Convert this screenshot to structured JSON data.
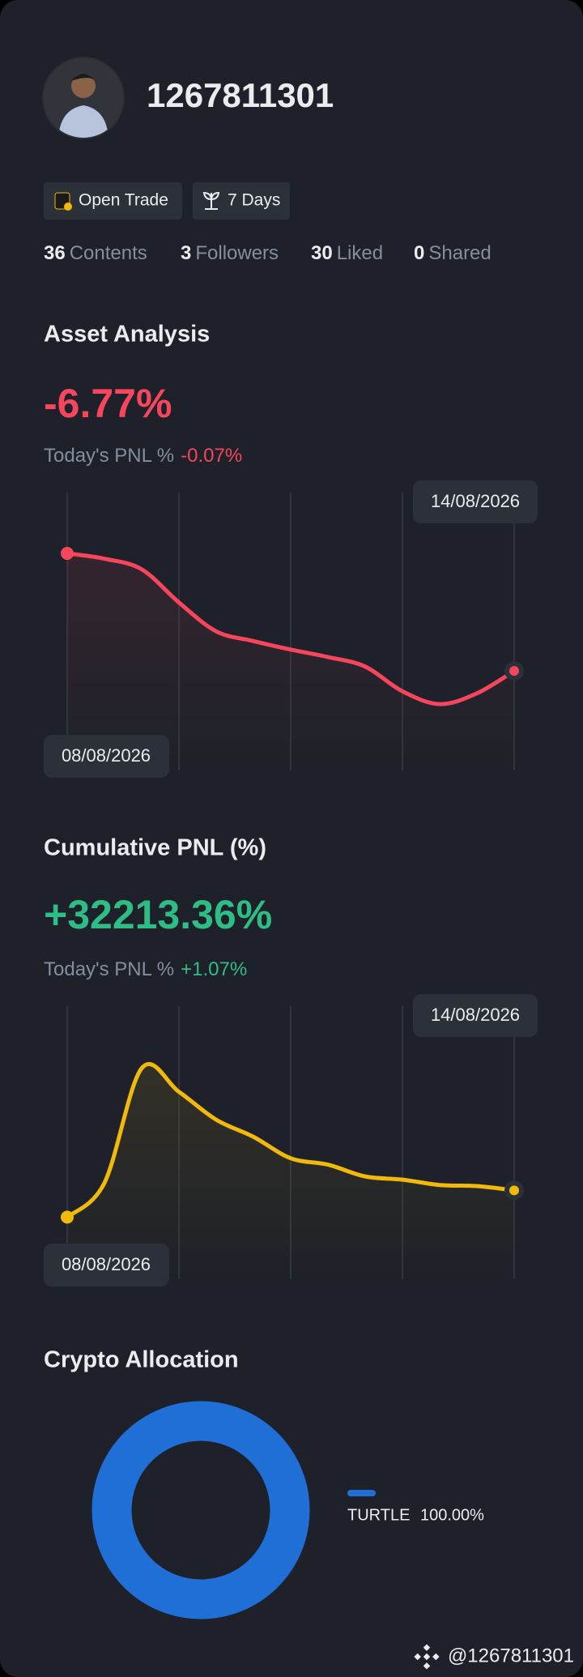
{
  "profile": {
    "username": "1267811301",
    "badges": [
      "Open Trade",
      "7 Days"
    ],
    "stats": [
      {
        "count": 36,
        "label": "Contents"
      },
      {
        "count": 3,
        "label": "Followers"
      },
      {
        "count": 30,
        "label": "Liked"
      },
      {
        "count": 0,
        "label": "Shared"
      }
    ]
  },
  "asset_analysis": {
    "title": "Asset Analysis",
    "value": "-6.77%",
    "today_label": "Today's PNL %",
    "today_value": "-0.07%",
    "chart": {
      "type": "line",
      "color": "#f6465d",
      "start_label": "08/08/2026",
      "end_label": "14/08/2026",
      "values": [
        0,
        -0.31,
        -0.92,
        -2.83,
        -4.49,
        -5.05,
        -5.54,
        -5.97,
        -6.52,
        -7.94,
        -8.68,
        -8.06,
        -6.77
      ],
      "ylim": [
        -12.5,
        3.5
      ]
    }
  },
  "cumulative_pnl": {
    "title": "Cumulative PNL (%)",
    "value": "+32213.36%",
    "today_label": "Today's PNL %",
    "today_value": "+1.07%",
    "chart": {
      "type": "line",
      "color": "#f0b90b",
      "start_label": "08/08/2026",
      "end_label": "14/08/2026",
      "values": [
        0,
        41232,
        179102,
        150755,
        117254,
        96638,
        70868,
        63137,
        48963,
        45097,
        38655,
        37367,
        32213.36
      ],
      "ylim": [
        -74700,
        253800
      ]
    }
  },
  "crypto_allocation": {
    "title": "Crypto Allocation",
    "chart": {
      "type": "pie",
      "categories": [
        "TURTLE"
      ],
      "values": [
        100
      ],
      "value_labels": [
        "100.00%"
      ],
      "colors": [
        "#1f6fd6"
      ]
    }
  },
  "footer": {
    "handle": "@1267811301"
  }
}
